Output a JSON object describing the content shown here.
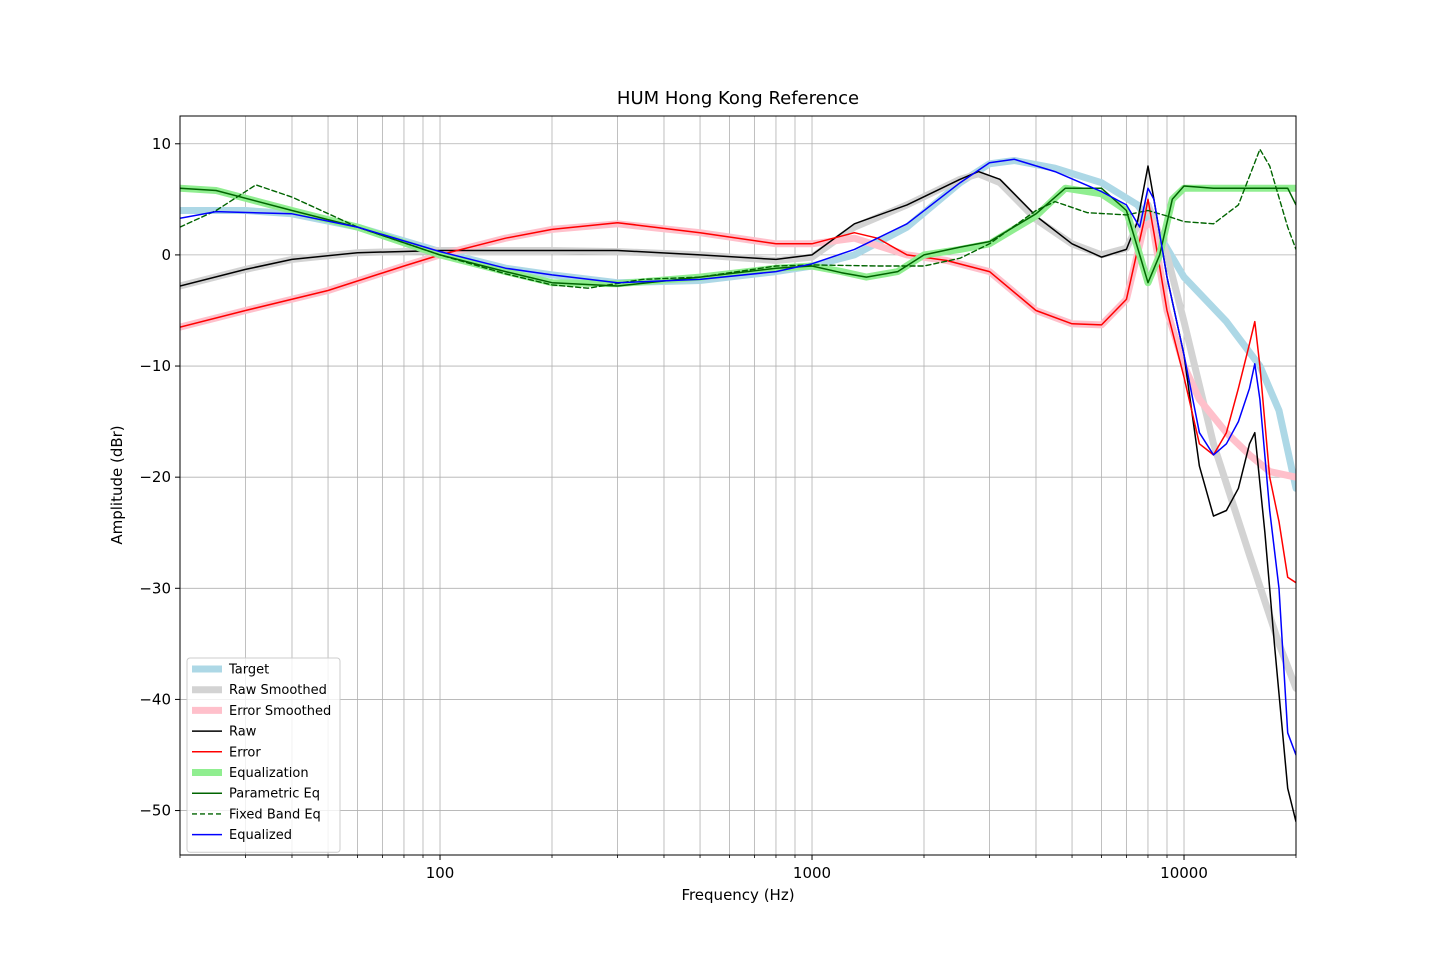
{
  "chart_data": {
    "type": "line",
    "title": "HUM Hong Kong Reference",
    "xlabel": "Frequency (Hz)",
    "ylabel": "Amplitude (dBr)",
    "xscale": "log",
    "xlim": [
      20,
      20000
    ],
    "ylim": [
      -54,
      12.5
    ],
    "x_ticks": [
      {
        "value": 100,
        "label": "100"
      },
      {
        "value": 1000,
        "label": "1000"
      },
      {
        "value": 10000,
        "label": "10000"
      }
    ],
    "y_ticks": [
      {
        "value": 10,
        "label": "10"
      },
      {
        "value": 0,
        "label": "0"
      },
      {
        "value": -10,
        "label": "−10"
      },
      {
        "value": -20,
        "label": "−20"
      },
      {
        "value": -30,
        "label": "−30"
      },
      {
        "value": -40,
        "label": "−40"
      },
      {
        "value": -50,
        "label": "−50"
      }
    ],
    "grid": true,
    "legend_position": "lower-left",
    "series": [
      {
        "name": "Target",
        "color": "#add8e6",
        "style": "thick",
        "points": [
          [
            20,
            4
          ],
          [
            30,
            4
          ],
          [
            40,
            3.7
          ],
          [
            60,
            2.5
          ],
          [
            100,
            0.3
          ],
          [
            150,
            -1.2
          ],
          [
            200,
            -1.8
          ],
          [
            300,
            -2.5
          ],
          [
            500,
            -2.3
          ],
          [
            800,
            -1.5
          ],
          [
            1000,
            -1
          ],
          [
            1300,
            0
          ],
          [
            1800,
            2.5
          ],
          [
            2500,
            6.5
          ],
          [
            3000,
            8.2
          ],
          [
            3500,
            8.5
          ],
          [
            4500,
            7.8
          ],
          [
            6000,
            6.5
          ],
          [
            7500,
            4.5
          ],
          [
            8500,
            2
          ],
          [
            10000,
            -2
          ],
          [
            13000,
            -6
          ],
          [
            16000,
            -10
          ],
          [
            18000,
            -14
          ],
          [
            20000,
            -21
          ]
        ]
      },
      {
        "name": "Raw Smoothed",
        "color": "#d3d3d3",
        "style": "thick",
        "points": [
          [
            20,
            -2.8
          ],
          [
            30,
            -1.3
          ],
          [
            40,
            -0.4
          ],
          [
            60,
            0.2
          ],
          [
            100,
            0.4
          ],
          [
            150,
            0.4
          ],
          [
            200,
            0.4
          ],
          [
            300,
            0.3
          ],
          [
            500,
            0
          ],
          [
            800,
            -0.5
          ],
          [
            1000,
            -0.2
          ],
          [
            1300,
            2.5
          ],
          [
            1800,
            4.5
          ],
          [
            2500,
            6.8
          ],
          [
            2800,
            7.3
          ],
          [
            3200,
            6.5
          ],
          [
            4000,
            3.2
          ],
          [
            5000,
            1
          ],
          [
            6000,
            0
          ],
          [
            7000,
            0.6
          ],
          [
            8000,
            4.5
          ],
          [
            9000,
            0
          ],
          [
            10000,
            -6
          ],
          [
            12000,
            -17
          ],
          [
            15000,
            -27
          ],
          [
            18000,
            -35
          ],
          [
            20000,
            -39
          ]
        ]
      },
      {
        "name": "Error Smoothed",
        "color": "#ffc0cb",
        "style": "thick",
        "points": [
          [
            20,
            -6.5
          ],
          [
            30,
            -5
          ],
          [
            50,
            -3.2
          ],
          [
            80,
            -1
          ],
          [
            100,
            0
          ],
          [
            150,
            1.5
          ],
          [
            200,
            2.3
          ],
          [
            300,
            2.8
          ],
          [
            500,
            2
          ],
          [
            800,
            1
          ],
          [
            1000,
            1
          ],
          [
            1300,
            1.5
          ],
          [
            1800,
            0
          ],
          [
            2300,
            -0.5
          ],
          [
            3000,
            -1.5
          ],
          [
            4000,
            -5
          ],
          [
            5000,
            -6.2
          ],
          [
            6000,
            -6.3
          ],
          [
            7000,
            -4
          ],
          [
            7800,
            2.5
          ],
          [
            8200,
            3
          ],
          [
            9000,
            -5
          ],
          [
            10000,
            -10
          ],
          [
            11000,
            -13
          ],
          [
            13000,
            -16
          ],
          [
            15000,
            -18
          ],
          [
            17000,
            -19.5
          ],
          [
            20000,
            -20
          ]
        ]
      },
      {
        "name": "Raw",
        "color": "#000000",
        "style": "thin",
        "points": [
          [
            20,
            -2.8
          ],
          [
            30,
            -1.3
          ],
          [
            40,
            -0.4
          ],
          [
            60,
            0.2
          ],
          [
            100,
            0.4
          ],
          [
            150,
            0.4
          ],
          [
            200,
            0.4
          ],
          [
            300,
            0.4
          ],
          [
            500,
            0
          ],
          [
            800,
            -0.4
          ],
          [
            1000,
            0
          ],
          [
            1300,
            2.8
          ],
          [
            1800,
            4.5
          ],
          [
            2500,
            6.8
          ],
          [
            2800,
            7.5
          ],
          [
            3200,
            6.8
          ],
          [
            4000,
            3.5
          ],
          [
            5000,
            1
          ],
          [
            6000,
            -0.2
          ],
          [
            7000,
            0.5
          ],
          [
            7500,
            3
          ],
          [
            8000,
            8
          ],
          [
            8300,
            5
          ],
          [
            9000,
            -2
          ],
          [
            10000,
            -9
          ],
          [
            11000,
            -19
          ],
          [
            12000,
            -23.5
          ],
          [
            13000,
            -23
          ],
          [
            14000,
            -21
          ],
          [
            15000,
            -17
          ],
          [
            15500,
            -16
          ],
          [
            16500,
            -25
          ],
          [
            17500,
            -35
          ],
          [
            19000,
            -48
          ],
          [
            20000,
            -51
          ]
        ]
      },
      {
        "name": "Error",
        "color": "#ff0000",
        "style": "thin",
        "points": [
          [
            20,
            -6.5
          ],
          [
            30,
            -5
          ],
          [
            50,
            -3.2
          ],
          [
            80,
            -1
          ],
          [
            100,
            0
          ],
          [
            150,
            1.5
          ],
          [
            200,
            2.3
          ],
          [
            300,
            2.9
          ],
          [
            500,
            2
          ],
          [
            800,
            1
          ],
          [
            1000,
            1
          ],
          [
            1300,
            2
          ],
          [
            1500,
            1.5
          ],
          [
            1800,
            0
          ],
          [
            2300,
            -0.5
          ],
          [
            3000,
            -1.5
          ],
          [
            4000,
            -5
          ],
          [
            5000,
            -6.2
          ],
          [
            6000,
            -6.3
          ],
          [
            7000,
            -4
          ],
          [
            7800,
            3
          ],
          [
            8000,
            5
          ],
          [
            8300,
            2
          ],
          [
            9000,
            -5
          ],
          [
            10000,
            -11
          ],
          [
            11000,
            -17
          ],
          [
            12000,
            -18
          ],
          [
            13000,
            -16
          ],
          [
            14000,
            -12
          ],
          [
            15000,
            -8
          ],
          [
            15500,
            -6
          ],
          [
            16000,
            -10
          ],
          [
            17000,
            -20
          ],
          [
            18000,
            -24
          ],
          [
            19000,
            -29
          ],
          [
            20000,
            -29.5
          ]
        ]
      },
      {
        "name": "Equalization",
        "color": "#90ee90",
        "style": "thick",
        "points": [
          [
            20,
            6
          ],
          [
            25,
            5.8
          ],
          [
            40,
            4
          ],
          [
            60,
            2.5
          ],
          [
            100,
            0
          ],
          [
            150,
            -1.5
          ],
          [
            200,
            -2.5
          ],
          [
            300,
            -2.6
          ],
          [
            500,
            -2
          ],
          [
            800,
            -1.2
          ],
          [
            1000,
            -1
          ],
          [
            1200,
            -1.5
          ],
          [
            1400,
            -2
          ],
          [
            1700,
            -1.5
          ],
          [
            2000,
            0
          ],
          [
            2500,
            0.5
          ],
          [
            3000,
            1
          ],
          [
            4000,
            3.5
          ],
          [
            4800,
            6
          ],
          [
            6000,
            5.5
          ],
          [
            7000,
            4
          ],
          [
            7600,
            0
          ],
          [
            8000,
            -2.5
          ],
          [
            8600,
            0
          ],
          [
            9300,
            5
          ],
          [
            10000,
            6
          ],
          [
            12000,
            6
          ],
          [
            16000,
            6
          ],
          [
            20000,
            6
          ]
        ]
      },
      {
        "name": "Parametric Eq",
        "color": "#006400",
        "style": "thin",
        "points": [
          [
            20,
            6
          ],
          [
            25,
            5.8
          ],
          [
            40,
            4
          ],
          [
            60,
            2.5
          ],
          [
            100,
            0
          ],
          [
            150,
            -1.5
          ],
          [
            200,
            -2.5
          ],
          [
            300,
            -2.8
          ],
          [
            500,
            -2
          ],
          [
            800,
            -1.2
          ],
          [
            1000,
            -1
          ],
          [
            1200,
            -1.6
          ],
          [
            1400,
            -2
          ],
          [
            1700,
            -1.5
          ],
          [
            2000,
            0
          ],
          [
            2500,
            0.7
          ],
          [
            3000,
            1.2
          ],
          [
            4000,
            3.7
          ],
          [
            4800,
            6
          ],
          [
            6000,
            6
          ],
          [
            7000,
            4
          ],
          [
            7600,
            0
          ],
          [
            8000,
            -2.5
          ],
          [
            8600,
            0
          ],
          [
            9300,
            5
          ],
          [
            10000,
            6.2
          ],
          [
            12000,
            6
          ],
          [
            15000,
            6
          ],
          [
            17000,
            6
          ],
          [
            19000,
            6
          ],
          [
            20000,
            4.5
          ]
        ]
      },
      {
        "name": "Fixed Band Eq",
        "color": "#006400",
        "style": "dashed",
        "points": [
          [
            20,
            2.5
          ],
          [
            25,
            4
          ],
          [
            32,
            6.3
          ],
          [
            40,
            5.2
          ],
          [
            60,
            2.5
          ],
          [
            100,
            0
          ],
          [
            150,
            -1.7
          ],
          [
            200,
            -2.7
          ],
          [
            250,
            -3
          ],
          [
            350,
            -2.2
          ],
          [
            500,
            -2
          ],
          [
            800,
            -1
          ],
          [
            1000,
            -0.9
          ],
          [
            1500,
            -1
          ],
          [
            2000,
            -1
          ],
          [
            2500,
            -0.3
          ],
          [
            3000,
            1
          ],
          [
            4000,
            4
          ],
          [
            4500,
            4.8
          ],
          [
            5500,
            3.8
          ],
          [
            7000,
            3.6
          ],
          [
            8000,
            4
          ],
          [
            9000,
            3.5
          ],
          [
            10000,
            3
          ],
          [
            12000,
            2.8
          ],
          [
            14000,
            4.5
          ],
          [
            16000,
            9.5
          ],
          [
            17000,
            8
          ],
          [
            19000,
            2.5
          ],
          [
            20000,
            0.5
          ]
        ]
      },
      {
        "name": "Equalized",
        "color": "#0000ff",
        "style": "thin",
        "points": [
          [
            20,
            3.3
          ],
          [
            25,
            3.9
          ],
          [
            40,
            3.7
          ],
          [
            60,
            2.5
          ],
          [
            100,
            0.3
          ],
          [
            150,
            -1.2
          ],
          [
            200,
            -1.8
          ],
          [
            300,
            -2.5
          ],
          [
            500,
            -2.2
          ],
          [
            800,
            -1.5
          ],
          [
            1000,
            -0.8
          ],
          [
            1300,
            0.5
          ],
          [
            1800,
            2.8
          ],
          [
            2500,
            6.5
          ],
          [
            3000,
            8.3
          ],
          [
            3500,
            8.6
          ],
          [
            4500,
            7.5
          ],
          [
            6000,
            5.7
          ],
          [
            7000,
            4.5
          ],
          [
            7600,
            2.5
          ],
          [
            8000,
            6
          ],
          [
            8300,
            5
          ],
          [
            9000,
            -2
          ],
          [
            10000,
            -9
          ],
          [
            11000,
            -16
          ],
          [
            12000,
            -18
          ],
          [
            13000,
            -17
          ],
          [
            14000,
            -15
          ],
          [
            15000,
            -12
          ],
          [
            15500,
            -9.8
          ],
          [
            16000,
            -13
          ],
          [
            17000,
            -23
          ],
          [
            18000,
            -30
          ],
          [
            19000,
            -43
          ],
          [
            20000,
            -45
          ]
        ]
      }
    ]
  }
}
